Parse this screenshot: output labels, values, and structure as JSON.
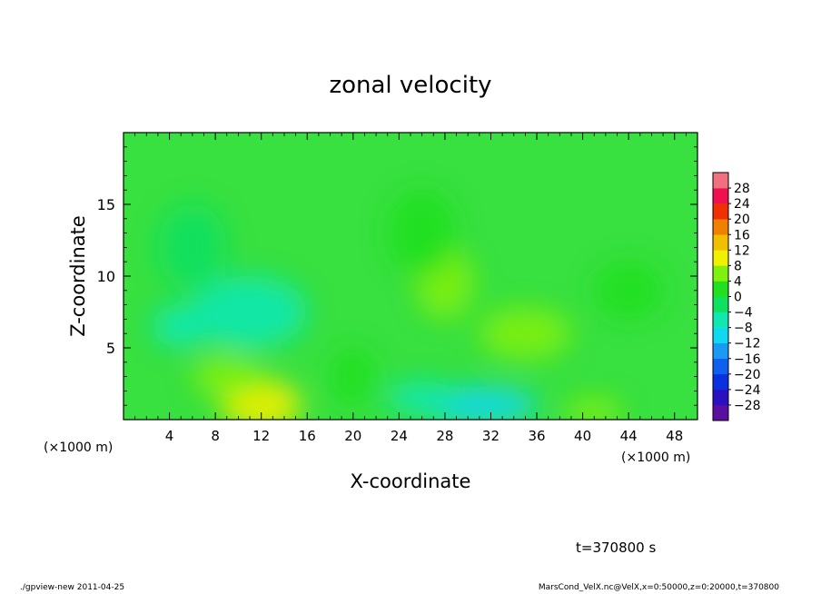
{
  "chart_data": {
    "type": "heatmap",
    "title": "zonal velocity",
    "xlabel": "X-coordinate",
    "ylabel": "Z-coordinate",
    "x_units_label": "(×1000 m)",
    "x_units_label_right": "(×1000 m)",
    "xlim": [
      0,
      50
    ],
    "ylim": [
      0,
      20
    ],
    "x_ticks": [
      4,
      8,
      12,
      16,
      20,
      24,
      28,
      32,
      36,
      40,
      44,
      48
    ],
    "x_tick_labels": [
      "4",
      "8",
      "12",
      "16",
      "20",
      "24",
      "28",
      "32",
      "36",
      "40",
      "44",
      "48"
    ],
    "y_ticks": [
      5,
      10,
      15
    ],
    "y_tick_labels": [
      "5",
      "10",
      "15"
    ],
    "colorbar": {
      "levels": [
        -28,
        -24,
        -20,
        -16,
        -12,
        -8,
        -4,
        0,
        4,
        8,
        12,
        16,
        20,
        24,
        28
      ],
      "labels": [
        "−28",
        "−24",
        "−20",
        "−16",
        "−12",
        "−8",
        "−4",
        "0",
        "4",
        "8",
        "12",
        "16",
        "20",
        "24",
        "28"
      ],
      "colors": [
        "#5a0fa0",
        "#2a10c0",
        "#0a30e0",
        "#1060f0",
        "#1a9af5",
        "#10d8f0",
        "#10e8b0",
        "#10e060",
        "#20e020",
        "#80f010",
        "#f0f000",
        "#f0c000",
        "#f08000",
        "#f03000",
        "#f01050",
        "#f07080"
      ]
    },
    "field_background": "#38e040",
    "field_blobs": [
      {
        "x": 11,
        "z": 7.5,
        "value": -8,
        "spread_x": 5,
        "spread_z": 2.5
      },
      {
        "x": 5,
        "z": 6.5,
        "value": -5,
        "spread_x": 2.5,
        "spread_z": 1.5
      },
      {
        "x": 31,
        "z": 1.0,
        "value": -9,
        "spread_x": 5,
        "spread_z": 1.3
      },
      {
        "x": 26,
        "z": 1.5,
        "value": -5,
        "spread_x": 3,
        "spread_z": 1.2
      },
      {
        "x": 12,
        "z": 1.0,
        "value": 8,
        "spread_x": 3.5,
        "spread_z": 1.8
      },
      {
        "x": 9,
        "z": 3.0,
        "value": 5,
        "spread_x": 3,
        "spread_z": 1.5
      },
      {
        "x": 35,
        "z": 6.0,
        "value": 7,
        "spread_x": 4,
        "spread_z": 1.8
      },
      {
        "x": 28,
        "z": 9.5,
        "value": 5,
        "spread_x": 2.5,
        "spread_z": 2.5
      },
      {
        "x": 41,
        "z": 0.5,
        "value": 6,
        "spread_x": 2.5,
        "spread_z": 1.0
      },
      {
        "x": 26,
        "z": 13,
        "value": 3,
        "spread_x": 3,
        "spread_z": 3
      },
      {
        "x": 44,
        "z": 9,
        "value": 3,
        "spread_x": 3,
        "spread_z": 2
      },
      {
        "x": 20,
        "z": 3,
        "value": 2,
        "spread_x": 2,
        "spread_z": 2
      },
      {
        "x": 6,
        "z": 12,
        "value": -2,
        "spread_x": 3,
        "spread_z": 3
      }
    ]
  },
  "annotation_time": "t=370800 s",
  "footer_left": "./gpview-new  2011-04-25",
  "footer_right": "MarsCond_VelX.nc@VelX,x=0:50000,z=0:20000,t=370800"
}
